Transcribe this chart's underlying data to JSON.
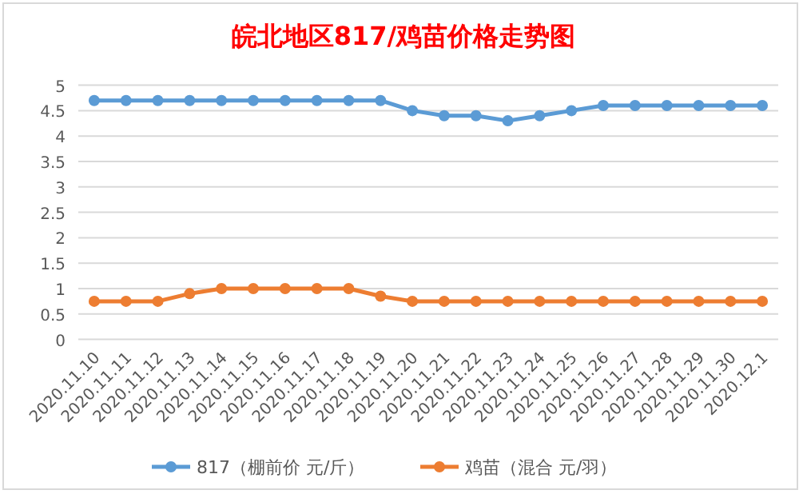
{
  "chart_data": {
    "type": "line",
    "title": "皖北地区817/鸡苗价格走势图",
    "categories": [
      "2020.11.10",
      "2020.11.11",
      "2020.11.12",
      "2020.11.13",
      "2020.11.14",
      "2020.11.15",
      "2020.11.16",
      "2020.11.17",
      "2020.11.18",
      "2020.11.19",
      "2020.11.20",
      "2020.11.21",
      "2020.11.22",
      "2020.11.23",
      "2020.11.24",
      "2020.11.25",
      "2020.11.26",
      "2020.11.27",
      "2020.11.28",
      "2020.11.29",
      "2020.11.30",
      "2020.12.1"
    ],
    "series": [
      {
        "name": "817（棚前价 元/斤）",
        "color": "#5b9bd5",
        "values": [
          4.7,
          4.7,
          4.7,
          4.7,
          4.7,
          4.7,
          4.7,
          4.7,
          4.7,
          4.7,
          4.5,
          4.4,
          4.4,
          4.3,
          4.4,
          4.5,
          4.6,
          4.6,
          4.6,
          4.6,
          4.6,
          4.6
        ]
      },
      {
        "name": "鸡苗（混合 元/羽）",
        "color": "#ed7d31",
        "values": [
          0.75,
          0.75,
          0.75,
          0.9,
          1,
          1,
          1,
          1,
          1,
          0.85,
          0.75,
          0.75,
          0.75,
          0.75,
          0.75,
          0.75,
          0.75,
          0.75,
          0.75,
          0.75,
          0.75,
          0.75
        ]
      }
    ],
    "ylim": [
      0,
      5
    ],
    "yticks": [
      0,
      0.5,
      1,
      1.5,
      2,
      2.5,
      3,
      3.5,
      4,
      4.5,
      5
    ],
    "grid": "y",
    "legend": "bottom",
    "marker": "circle",
    "line_style": "solid"
  }
}
